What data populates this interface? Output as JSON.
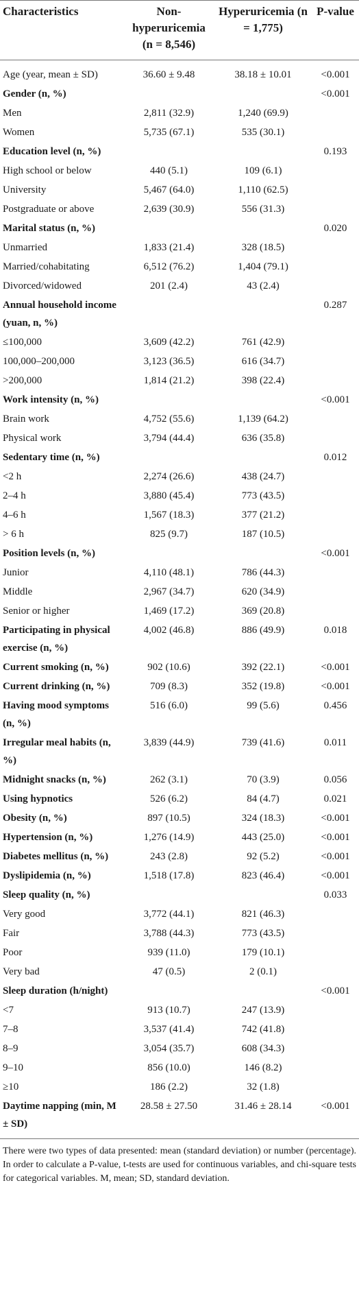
{
  "table": {
    "header": [
      "Characteristics",
      "Non-hyperuricemia (n = 8,546)",
      "Hyperuricemia (n = 1,775)",
      "P-value"
    ],
    "rows": [
      {
        "label": "Age (year, mean ± SD)",
        "non": "36.60 ± 9.48",
        "hyper": "38.18 ± 10.01",
        "p": "<0.001"
      },
      {
        "label": "Gender (n, %)",
        "p": "<0.001",
        "heading": true
      },
      {
        "label": "Men",
        "non": "2,811 (32.9)",
        "hyper": "1,240 (69.9)"
      },
      {
        "label": "Women",
        "non": "5,735 (67.1)",
        "hyper": "535 (30.1)"
      },
      {
        "label": "Education level (n, %)",
        "p": "0.193",
        "heading": true
      },
      {
        "label": "High school or below",
        "non": "440 (5.1)",
        "hyper": "109 (6.1)"
      },
      {
        "label": "University",
        "non": "5,467 (64.0)",
        "hyper": "1,110 (62.5)"
      },
      {
        "label": "Postgraduate or above",
        "non": "2,639 (30.9)",
        "hyper": "556 (31.3)"
      },
      {
        "label": "Marital status (n, %)",
        "p": "0.020",
        "heading": true
      },
      {
        "label": "Unmarried",
        "non": "1,833 (21.4)",
        "hyper": "328 (18.5)"
      },
      {
        "label": "Married/cohabitating",
        "non": "6,512 (76.2)",
        "hyper": "1,404 (79.1)"
      },
      {
        "label": "Divorced/widowed",
        "non": "201 (2.4)",
        "hyper": "43 (2.4)"
      },
      {
        "label": "Annual household income (yuan, n, %)",
        "p": "0.287",
        "heading": true
      },
      {
        "label": "≤100,000",
        "non": "3,609 (42.2)",
        "hyper": "761 (42.9)"
      },
      {
        "label": "100,000–200,000",
        "non": "3,123 (36.5)",
        "hyper": "616 (34.7)"
      },
      {
        "label": ">200,000",
        "non": "1,814 (21.2)",
        "hyper": "398 (22.4)"
      },
      {
        "label": "Work intensity (n, %)",
        "p": "<0.001",
        "heading": true
      },
      {
        "label": "Brain work",
        "non": "4,752 (55.6)",
        "hyper": "1,139 (64.2)"
      },
      {
        "label": "Physical work",
        "non": "3,794 (44.4)",
        "hyper": "636 (35.8)"
      },
      {
        "label": "Sedentary time (n, %)",
        "p": "0.012",
        "heading": true
      },
      {
        "label": "<2 h",
        "non": "2,274 (26.6)",
        "hyper": "438 (24.7)"
      },
      {
        "label": "2–4 h",
        "non": "3,880 (45.4)",
        "hyper": "773 (43.5)"
      },
      {
        "label": "4–6 h",
        "non": "1,567 (18.3)",
        "hyper": "377 (21.2)"
      },
      {
        "label": "> 6 h",
        "non": "825 (9.7)",
        "hyper": "187 (10.5)"
      },
      {
        "label": "Position levels (n, %)",
        "p": "<0.001",
        "heading": true
      },
      {
        "label": "Junior",
        "non": "4,110 (48.1)",
        "hyper": "786 (44.3)"
      },
      {
        "label": "Middle",
        "non": "2,967 (34.7)",
        "hyper": "620 (34.9)"
      },
      {
        "label": "Senior or higher",
        "non": "1,469 (17.2)",
        "hyper": "369 (20.8)"
      },
      {
        "label": "Participating in physical exercise (n, %)",
        "non": "4,002 (46.8)",
        "hyper": "886 (49.9)",
        "p": "0.018",
        "heading": true
      },
      {
        "label": "Current smoking (n, %)",
        "non": "902 (10.6)",
        "hyper": "392 (22.1)",
        "p": "<0.001",
        "heading": true
      },
      {
        "label": "Current drinking (n, %)",
        "non": "709 (8.3)",
        "hyper": "352 (19.8)",
        "p": "<0.001",
        "heading": true
      },
      {
        "label": "Having mood symptoms (n, %)",
        "non": "516 (6.0)",
        "hyper": "99 (5.6)",
        "p": "0.456",
        "heading": true
      },
      {
        "label": "Irregular meal habits (n, %)",
        "non": "3,839 (44.9)",
        "hyper": "739 (41.6)",
        "p": "0.011",
        "heading": true
      },
      {
        "label": "Midnight snacks (n, %)",
        "non": "262 (3.1)",
        "hyper": "70 (3.9)",
        "p": "0.056",
        "heading": true
      },
      {
        "label": "Using hypnotics",
        "non": "526 (6.2)",
        "hyper": "84 (4.7)",
        "p": "0.021",
        "heading": true
      },
      {
        "label": "Obesity (n, %)",
        "non": "897 (10.5)",
        "hyper": "324 (18.3)",
        "p": "<0.001",
        "heading": true
      },
      {
        "label": "Hypertension (n, %)",
        "non": "1,276 (14.9)",
        "hyper": "443 (25.0)",
        "p": "<0.001",
        "heading": true
      },
      {
        "label": "Diabetes mellitus (n, %)",
        "non": "243 (2.8)",
        "hyper": "92 (5.2)",
        "p": "<0.001",
        "heading": true
      },
      {
        "label": "Dyslipidemia (n, %)",
        "non": "1,518 (17.8)",
        "hyper": "823 (46.4)",
        "p": "<0.001",
        "heading": true
      },
      {
        "label": "Sleep quality (n, %)",
        "p": "0.033",
        "heading": true
      },
      {
        "label": "Very good",
        "non": "3,772 (44.1)",
        "hyper": "821 (46.3)"
      },
      {
        "label": "Fair",
        "non": "3,788 (44.3)",
        "hyper": "773 (43.5)"
      },
      {
        "label": "Poor",
        "non": "939 (11.0)",
        "hyper": "179 (10.1)"
      },
      {
        "label": "Very bad",
        "non": "47 (0.5)",
        "hyper": "2 (0.1)"
      },
      {
        "label": "Sleep duration (h/night)",
        "p": "<0.001",
        "heading": true
      },
      {
        "label": "<7",
        "non": "913 (10.7)",
        "hyper": "247 (13.9)"
      },
      {
        "label": "7–8",
        "non": "3,537 (41.4)",
        "hyper": "742 (41.8)"
      },
      {
        "label": "8–9",
        "non": "3,054 (35.7)",
        "hyper": "608 (34.3)"
      },
      {
        "label": "9–10",
        "non": "856 (10.0)",
        "hyper": "146 (8.2)"
      },
      {
        "label": "≥10",
        "non": "186 (2.2)",
        "hyper": "32 (1.8)"
      },
      {
        "label": "Daytime napping (min, M ± SD)",
        "non": "28.58 ± 27.50",
        "hyper": "31.46 ± 28.14",
        "p": "<0.001",
        "heading": true
      }
    ]
  },
  "footnote": "There were two types of data presented: mean (standard deviation) or number (percentage). In order to calculate a P-value, t-tests are used for continuous variables, and chi-square tests for categorical variables. M, mean; SD, standard deviation."
}
